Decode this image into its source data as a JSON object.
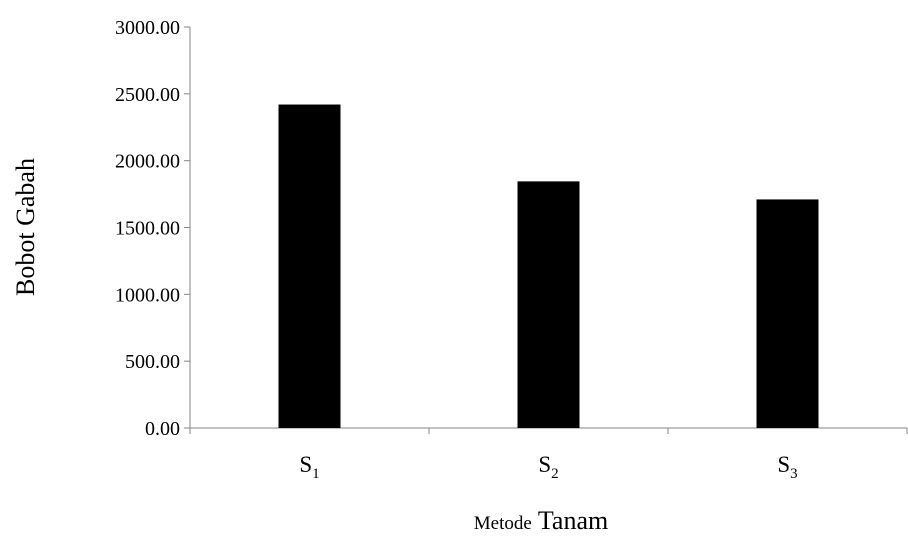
{
  "chart_data": {
    "type": "bar",
    "categories": [
      {
        "base": "S",
        "sub": "1"
      },
      {
        "base": "S",
        "sub": "2"
      },
      {
        "base": "S",
        "sub": "3"
      }
    ],
    "values": [
      2420,
      1845,
      1710
    ],
    "ylabel": "Bobot Gabah",
    "xlabel": {
      "part1": "Metode",
      "part2": "Tanam"
    },
    "ylim": [
      0,
      3000
    ],
    "yticks": [
      "0.00",
      "500.00",
      "1000.00",
      "1500.00",
      "2000.00",
      "2500.00",
      "3000.00"
    ],
    "ytick_values": [
      0,
      500,
      1000,
      1500,
      2000,
      2500,
      3000
    ],
    "grid": false,
    "legend": "none",
    "bar_color": "#000000",
    "axis_color": "#868686"
  }
}
